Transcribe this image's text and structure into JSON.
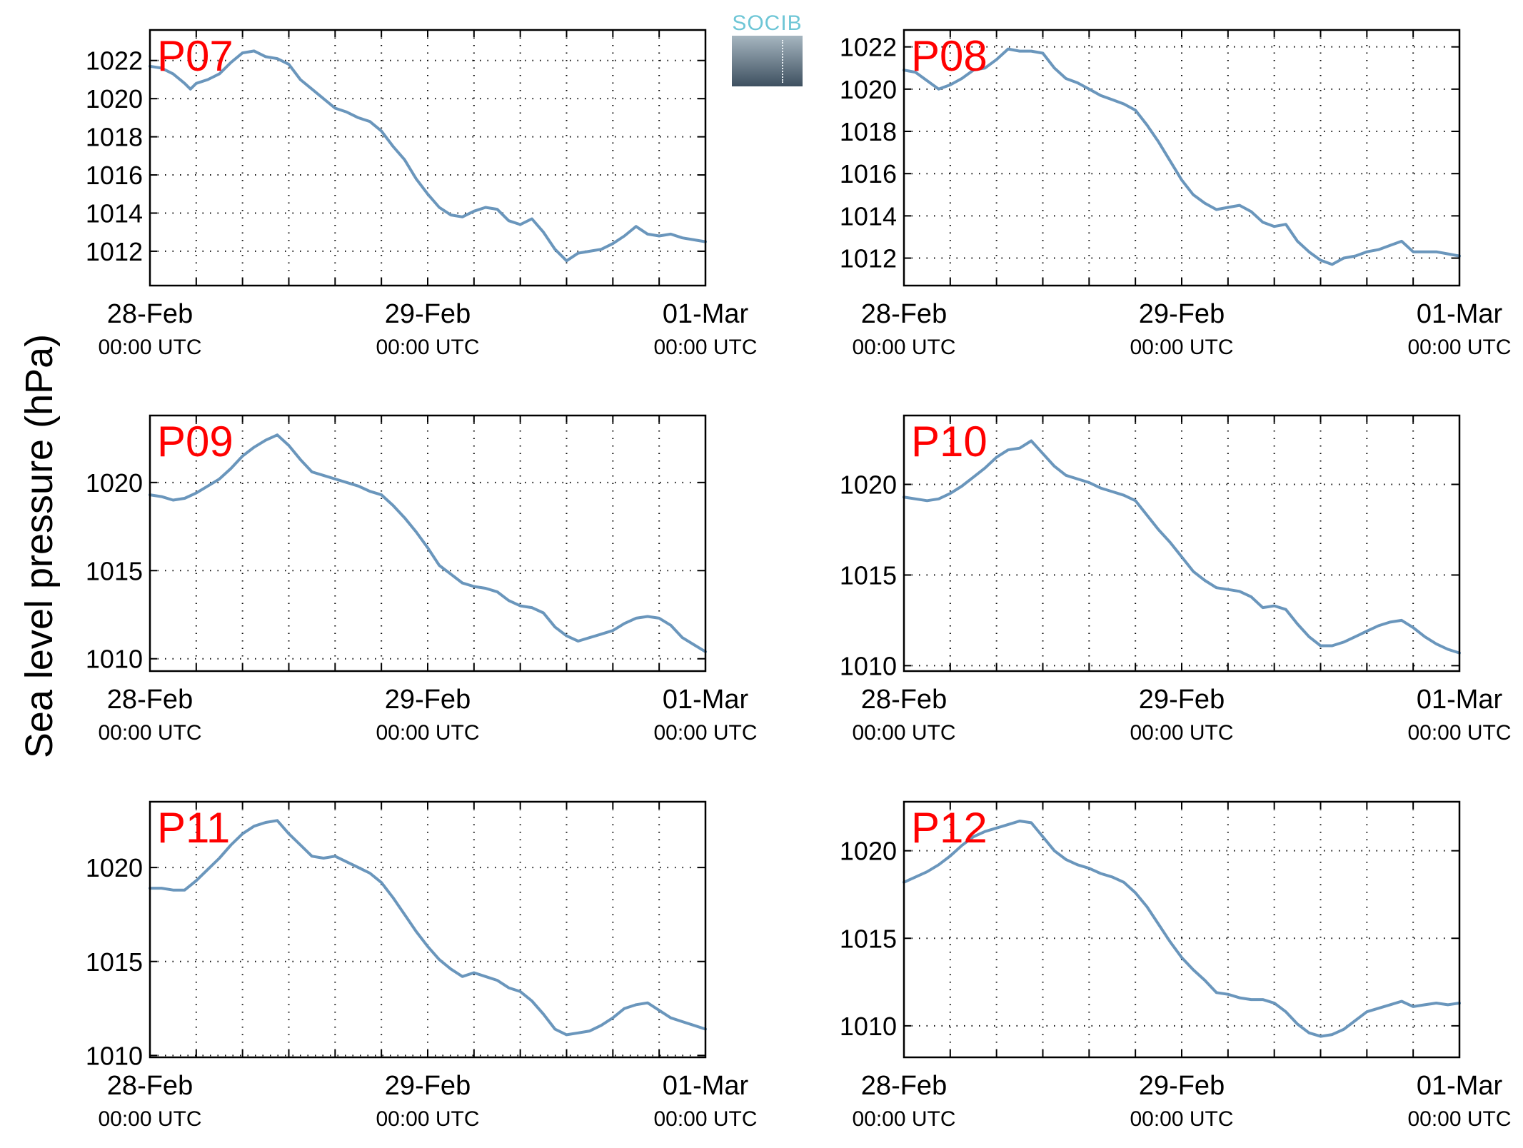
{
  "ylabel": "Sea level pressure (hPa)",
  "logo_text": "SOCIB",
  "colors": {
    "line": "#6a96bc",
    "panel_label": "#ff0000",
    "grid": "#000000"
  },
  "chart_data": [
    {
      "type": "line",
      "label": "P07",
      "x_ticks": [
        {
          "date": "28-Feb",
          "time": "00:00 UTC"
        },
        {
          "date": "29-Feb",
          "time": "00:00 UTC"
        },
        {
          "date": "01-Mar",
          "time": "00:00 UTC"
        }
      ],
      "xlim_hours": [
        0,
        48
      ],
      "ylim": [
        1010.2,
        1023.6
      ],
      "yticks": [
        1012,
        1014,
        1016,
        1018,
        1020,
        1022
      ],
      "grid": true,
      "x": [
        0,
        1,
        2,
        3,
        3.5,
        4,
        5,
        6,
        7,
        8,
        9,
        10,
        11,
        12,
        13,
        14,
        15,
        16,
        17,
        18,
        19,
        20,
        21,
        22,
        23,
        24,
        25,
        26,
        27,
        28,
        29,
        30,
        31,
        32,
        33,
        34,
        35,
        36,
        37,
        38,
        39,
        40,
        41,
        42,
        43,
        44,
        45,
        46,
        47,
        48
      ],
      "y": [
        1021.7,
        1021.6,
        1021.3,
        1020.8,
        1020.5,
        1020.8,
        1021.0,
        1021.3,
        1021.9,
        1022.4,
        1022.5,
        1022.2,
        1022.1,
        1021.8,
        1021.0,
        1020.5,
        1020.0,
        1019.5,
        1019.3,
        1019.0,
        1018.8,
        1018.3,
        1017.5,
        1016.8,
        1015.8,
        1015.0,
        1014.3,
        1013.9,
        1013.8,
        1014.1,
        1014.3,
        1014.2,
        1013.6,
        1013.4,
        1013.7,
        1013.0,
        1012.1,
        1011.5,
        1011.9,
        1012.0,
        1012.1,
        1012.4,
        1012.8,
        1013.3,
        1012.9,
        1012.8,
        1012.9,
        1012.7,
        1012.6,
        1012.5
      ]
    },
    {
      "type": "line",
      "label": "P08",
      "x_ticks": [
        {
          "date": "28-Feb",
          "time": "00:00 UTC"
        },
        {
          "date": "29-Feb",
          "time": "00:00 UTC"
        },
        {
          "date": "01-Mar",
          "time": "00:00 UTC"
        }
      ],
      "xlim_hours": [
        0,
        48
      ],
      "ylim": [
        1010.7,
        1022.8
      ],
      "yticks": [
        1012,
        1014,
        1016,
        1018,
        1020,
        1022
      ],
      "grid": true,
      "x": [
        0,
        1,
        2,
        3,
        4,
        5,
        6,
        7,
        8,
        9,
        10,
        11,
        12,
        13,
        14,
        15,
        16,
        17,
        18,
        19,
        20,
        21,
        22,
        23,
        24,
        25,
        26,
        27,
        28,
        29,
        30,
        31,
        32,
        33,
        34,
        35,
        36,
        37,
        38,
        39,
        40,
        41,
        42,
        43,
        44,
        45,
        46,
        47,
        48
      ],
      "y": [
        1020.9,
        1020.8,
        1020.4,
        1020.0,
        1020.2,
        1020.5,
        1020.9,
        1021.0,
        1021.4,
        1021.9,
        1021.8,
        1021.8,
        1021.7,
        1021.0,
        1020.5,
        1020.3,
        1020.0,
        1019.7,
        1019.5,
        1019.3,
        1019.0,
        1018.3,
        1017.5,
        1016.6,
        1015.7,
        1015.0,
        1014.6,
        1014.3,
        1014.4,
        1014.5,
        1014.2,
        1013.7,
        1013.5,
        1013.6,
        1012.8,
        1012.3,
        1011.9,
        1011.7,
        1012.0,
        1012.1,
        1012.3,
        1012.4,
        1012.6,
        1012.8,
        1012.3,
        1012.3,
        1012.3,
        1012.2,
        1012.1
      ]
    },
    {
      "type": "line",
      "label": "P09",
      "x_ticks": [
        {
          "date": "28-Feb",
          "time": "00:00 UTC"
        },
        {
          "date": "29-Feb",
          "time": "00:00 UTC"
        },
        {
          "date": "01-Mar",
          "time": "00:00 UTC"
        }
      ],
      "xlim_hours": [
        0,
        48
      ],
      "ylim": [
        1009.3,
        1023.8
      ],
      "yticks": [
        1010,
        1015,
        1020
      ],
      "grid": true,
      "x": [
        0,
        1,
        2,
        3,
        4,
        5,
        6,
        7,
        8,
        9,
        10,
        11,
        12,
        13,
        14,
        15,
        16,
        17,
        18,
        19,
        20,
        21,
        22,
        23,
        24,
        25,
        26,
        27,
        28,
        29,
        30,
        31,
        32,
        33,
        34,
        35,
        36,
        37,
        38,
        39,
        40,
        41,
        42,
        43,
        44,
        45,
        46,
        47,
        48
      ],
      "y": [
        1019.3,
        1019.2,
        1019.0,
        1019.1,
        1019.4,
        1019.8,
        1020.2,
        1020.8,
        1021.5,
        1022.0,
        1022.4,
        1022.7,
        1022.1,
        1021.3,
        1020.6,
        1020.4,
        1020.2,
        1020.0,
        1019.8,
        1019.5,
        1019.3,
        1018.7,
        1018.0,
        1017.2,
        1016.3,
        1015.3,
        1014.8,
        1014.3,
        1014.1,
        1014.0,
        1013.8,
        1013.3,
        1013.0,
        1012.9,
        1012.6,
        1011.8,
        1011.3,
        1011.0,
        1011.2,
        1011.4,
        1011.6,
        1012.0,
        1012.3,
        1012.4,
        1012.3,
        1011.9,
        1011.2,
        1010.8,
        1010.4
      ]
    },
    {
      "type": "line",
      "label": "P10",
      "x_ticks": [
        {
          "date": "28-Feb",
          "time": "00:00 UTC"
        },
        {
          "date": "29-Feb",
          "time": "00:00 UTC"
        },
        {
          "date": "01-Mar",
          "time": "00:00 UTC"
        }
      ],
      "xlim_hours": [
        0,
        48
      ],
      "ylim": [
        1009.7,
        1023.8
      ],
      "yticks": [
        1010,
        1015,
        1020
      ],
      "grid": true,
      "x": [
        0,
        1,
        2,
        3,
        4,
        5,
        6,
        7,
        8,
        9,
        10,
        11,
        12,
        13,
        14,
        15,
        16,
        17,
        18,
        19,
        20,
        21,
        22,
        23,
        24,
        25,
        26,
        27,
        28,
        29,
        30,
        31,
        32,
        33,
        34,
        35,
        36,
        37,
        38,
        39,
        40,
        41,
        42,
        43,
        44,
        45,
        46,
        47,
        48
      ],
      "y": [
        1019.3,
        1019.2,
        1019.1,
        1019.2,
        1019.5,
        1019.9,
        1020.4,
        1020.9,
        1021.5,
        1021.9,
        1022.0,
        1022.4,
        1021.7,
        1021.0,
        1020.5,
        1020.3,
        1020.1,
        1019.8,
        1019.6,
        1019.4,
        1019.1,
        1018.3,
        1017.5,
        1016.8,
        1016.0,
        1015.2,
        1014.7,
        1014.3,
        1014.2,
        1014.1,
        1013.8,
        1013.2,
        1013.3,
        1013.1,
        1012.3,
        1011.6,
        1011.1,
        1011.1,
        1011.3,
        1011.6,
        1011.9,
        1012.2,
        1012.4,
        1012.5,
        1012.1,
        1011.6,
        1011.2,
        1010.9,
        1010.7
      ]
    },
    {
      "type": "line",
      "label": "P11",
      "x_ticks": [
        {
          "date": "28-Feb",
          "time": "00:00 UTC"
        },
        {
          "date": "29-Feb",
          "time": "00:00 UTC"
        },
        {
          "date": "01-Mar",
          "time": "00:00 UTC"
        }
      ],
      "xlim_hours": [
        0,
        48
      ],
      "ylim": [
        1009.9,
        1023.5
      ],
      "yticks": [
        1010,
        1015,
        1020
      ],
      "grid": true,
      "x": [
        0,
        1,
        2,
        3,
        4,
        5,
        6,
        7,
        8,
        9,
        10,
        11,
        12,
        13,
        14,
        15,
        16,
        17,
        18,
        19,
        20,
        21,
        22,
        23,
        24,
        25,
        26,
        27,
        28,
        29,
        30,
        31,
        32,
        33,
        34,
        35,
        36,
        37,
        38,
        39,
        40,
        41,
        42,
        43,
        44,
        45,
        46,
        47,
        48
      ],
      "y": [
        1018.9,
        1018.9,
        1018.8,
        1018.8,
        1019.3,
        1019.9,
        1020.5,
        1021.2,
        1021.8,
        1022.2,
        1022.4,
        1022.5,
        1021.8,
        1021.2,
        1020.6,
        1020.5,
        1020.6,
        1020.3,
        1020.0,
        1019.7,
        1019.2,
        1018.4,
        1017.5,
        1016.6,
        1015.8,
        1015.1,
        1014.6,
        1014.2,
        1014.4,
        1014.2,
        1014.0,
        1013.6,
        1013.4,
        1012.9,
        1012.2,
        1011.4,
        1011.1,
        1011.2,
        1011.3,
        1011.6,
        1012.0,
        1012.5,
        1012.7,
        1012.8,
        1012.4,
        1012.0,
        1011.8,
        1011.6,
        1011.4
      ]
    },
    {
      "type": "line",
      "label": "P12",
      "x_ticks": [
        {
          "date": "28-Feb",
          "time": "00:00 UTC"
        },
        {
          "date": "29-Feb",
          "time": "00:00 UTC"
        },
        {
          "date": "01-Mar",
          "time": "00:00 UTC"
        }
      ],
      "xlim_hours": [
        0,
        48
      ],
      "ylim": [
        1008.2,
        1022.8
      ],
      "yticks": [
        1010,
        1015,
        1020
      ],
      "grid": true,
      "x": [
        0,
        1,
        2,
        3,
        4,
        5,
        6,
        7,
        8,
        9,
        10,
        11,
        12,
        13,
        14,
        15,
        16,
        17,
        18,
        19,
        20,
        21,
        22,
        23,
        24,
        25,
        26,
        27,
        28,
        29,
        30,
        31,
        32,
        33,
        34,
        35,
        36,
        37,
        38,
        39,
        40,
        41,
        42,
        43,
        44,
        45,
        46,
        47,
        48
      ],
      "y": [
        1018.2,
        1018.5,
        1018.8,
        1019.2,
        1019.7,
        1020.3,
        1020.8,
        1021.1,
        1021.3,
        1021.5,
        1021.7,
        1021.6,
        1020.8,
        1020.0,
        1019.5,
        1019.2,
        1019.0,
        1018.7,
        1018.5,
        1018.2,
        1017.6,
        1016.8,
        1015.8,
        1014.8,
        1013.9,
        1013.2,
        1012.6,
        1011.9,
        1011.8,
        1011.6,
        1011.5,
        1011.5,
        1011.3,
        1010.8,
        1010.1,
        1009.6,
        1009.4,
        1009.5,
        1009.8,
        1010.3,
        1010.8,
        1011.0,
        1011.2,
        1011.4,
        1011.1,
        1011.2,
        1011.3,
        1011.2,
        1011.3
      ]
    }
  ]
}
